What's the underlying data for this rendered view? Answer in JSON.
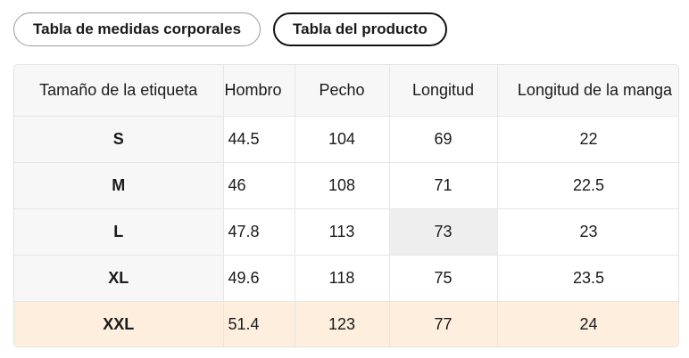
{
  "tabs": [
    {
      "label": "Tabla de medidas corporales",
      "active": false
    },
    {
      "label": "Tabla del producto",
      "active": true
    }
  ],
  "table": {
    "headers": [
      "Tamaño de la etiqueta",
      "Hombro",
      "Pecho",
      "Longitud",
      "Longitud de la manga"
    ],
    "rows": [
      [
        "S",
        "44.5",
        "104",
        "69",
        "22"
      ],
      [
        "M",
        "46",
        "108",
        "71",
        "22.5"
      ],
      [
        "L",
        "47.8",
        "113",
        "73",
        "23"
      ],
      [
        "XL",
        "49.6",
        "118",
        "75",
        "23.5"
      ],
      [
        "XXL",
        "51.4",
        "123",
        "77",
        "24"
      ]
    ],
    "highlight_row_color": "#fdeedd"
  }
}
